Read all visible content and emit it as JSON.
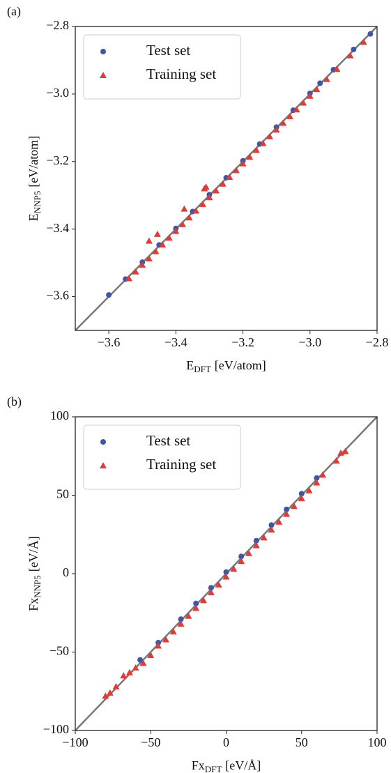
{
  "chart_data": [
    {
      "type": "scatter",
      "panel_label": "(a)",
      "xlabel": {
        "main": "E",
        "sub": "DFT",
        "unit": "[eV/atom]"
      },
      "ylabel": {
        "main": "E",
        "sub": "NNP5",
        "unit": "[eV/atom]"
      },
      "xlim": [
        -3.7,
        -2.8
      ],
      "ylim": [
        -3.7,
        -2.8
      ],
      "xticks": [
        {
          "value": -3.6,
          "label": "−3.6"
        },
        {
          "value": -3.4,
          "label": "−3.4"
        },
        {
          "value": -3.2,
          "label": "−3.2"
        },
        {
          "value": -3.0,
          "label": "−3.0"
        },
        {
          "value": -2.8,
          "label": "−2.8"
        }
      ],
      "yticks": [
        {
          "value": -3.6,
          "label": "−3.6"
        },
        {
          "value": -3.4,
          "label": "−3.4"
        },
        {
          "value": -3.2,
          "label": "−3.2"
        },
        {
          "value": -3.0,
          "label": "−3.0"
        },
        {
          "value": -2.8,
          "label": "−2.8"
        }
      ],
      "diagonal": true,
      "legend": "upper left",
      "series": [
        {
          "name": "Test set",
          "color": "#3f55a6",
          "marker": "circle",
          "x": [
            -3.6,
            -3.55,
            -3.5,
            -3.45,
            -3.4,
            -3.35,
            -3.3,
            -3.25,
            -3.2,
            -3.15,
            -3.1,
            -3.05,
            -3.0,
            -2.97,
            -2.93,
            -2.87,
            -2.82
          ],
          "values": [
            -3.595,
            -3.548,
            -3.498,
            -3.447,
            -3.398,
            -3.348,
            -3.298,
            -3.248,
            -3.198,
            -3.148,
            -3.098,
            -3.048,
            -2.998,
            -2.968,
            -2.928,
            -2.868,
            -2.822
          ]
        },
        {
          "name": "Training set",
          "color": "#e23b36",
          "marker": "triangle",
          "x": [
            -3.54,
            -3.52,
            -3.5,
            -3.48,
            -3.46,
            -3.44,
            -3.42,
            -3.4,
            -3.38,
            -3.36,
            -3.34,
            -3.32,
            -3.3,
            -3.28,
            -3.26,
            -3.24,
            -3.22,
            -3.2,
            -3.18,
            -3.16,
            -3.14,
            -3.12,
            -3.1,
            -3.08,
            -3.06,
            -3.04,
            -3.02,
            -3.0,
            -2.98,
            -2.95,
            -2.92,
            -2.88,
            -2.84,
            -3.48,
            -3.455,
            -3.375,
            -3.31,
            -3.315
          ],
          "values": [
            -3.546,
            -3.526,
            -3.506,
            -3.487,
            -3.466,
            -3.446,
            -3.426,
            -3.406,
            -3.386,
            -3.366,
            -3.346,
            -3.326,
            -3.306,
            -3.286,
            -3.266,
            -3.246,
            -3.226,
            -3.206,
            -3.186,
            -3.166,
            -3.146,
            -3.126,
            -3.106,
            -3.086,
            -3.066,
            -3.046,
            -3.026,
            -3.006,
            -2.986,
            -2.956,
            -2.926,
            -2.886,
            -2.846,
            -3.435,
            -3.415,
            -3.34,
            -3.275,
            -3.28
          ]
        }
      ]
    },
    {
      "type": "scatter",
      "panel_label": "(b)",
      "xlabel": {
        "main": "Fx",
        "sub": "DFT",
        "unit": "[eV/Å]"
      },
      "ylabel": {
        "main": "Fx",
        "sub": "NNP5",
        "unit": "[eV/Å]"
      },
      "xlim": [
        -100,
        100
      ],
      "ylim": [
        -100,
        100
      ],
      "xticks": [
        {
          "value": -100,
          "label": "−100"
        },
        {
          "value": -50,
          "label": "−50"
        },
        0,
        50,
        100
      ],
      "yticks": [
        {
          "value": -100,
          "label": "−100"
        },
        {
          "value": -50,
          "label": "−50"
        },
        0,
        50,
        100
      ],
      "diagonal": true,
      "legend": "upper left",
      "series": [
        {
          "name": "Test set",
          "color": "#3f55a6",
          "marker": "circle",
          "x": [
            -57,
            -45,
            -30,
            -20,
            -10,
            0,
            10,
            20,
            30,
            40,
            50,
            60
          ],
          "values": [
            -55,
            -44,
            -29,
            -19,
            -9,
            1,
            11,
            21,
            31,
            41,
            51,
            61
          ]
        },
        {
          "name": "Training set",
          "color": "#e23b36",
          "marker": "triangle",
          "x": [
            -80,
            -77,
            -73,
            -68,
            -64,
            -60,
            -55,
            -50,
            -45,
            -40,
            -35,
            -30,
            -25,
            -20,
            -15,
            -10,
            -5,
            0,
            5,
            10,
            15,
            20,
            25,
            30,
            35,
            40,
            45,
            50,
            55,
            60,
            64,
            73,
            76,
            79
          ],
          "values": [
            -78,
            -76,
            -72,
            -65,
            -63,
            -60,
            -57,
            -52,
            -46,
            -42,
            -37,
            -32,
            -27,
            -22,
            -17,
            -12,
            -7,
            -2,
            3,
            8,
            13,
            18,
            23,
            28,
            33,
            38,
            43,
            48,
            53,
            58,
            63,
            72,
            77,
            78
          ]
        }
      ]
    }
  ]
}
